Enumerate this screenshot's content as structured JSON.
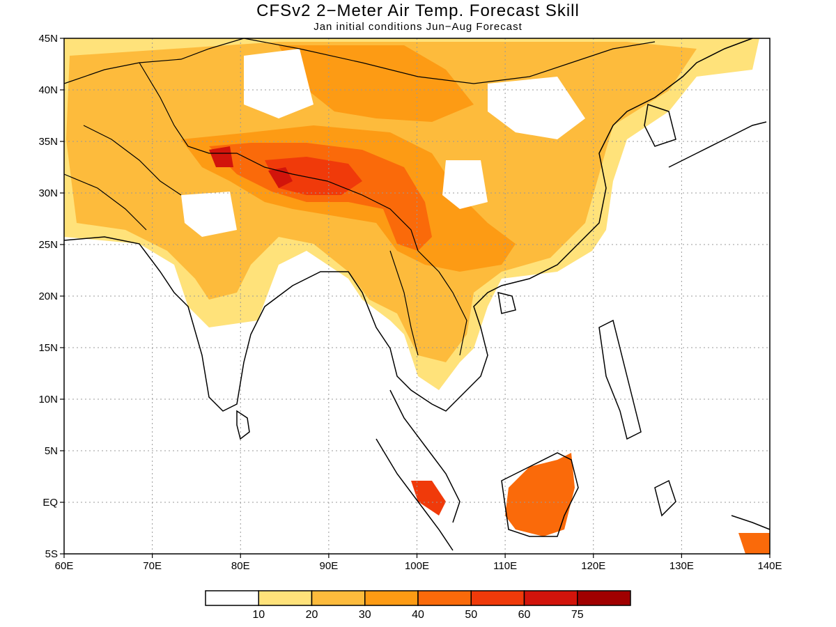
{
  "title": "CFSv2 2−Meter Air Temp. Forecast Skill",
  "subtitle": "Jan initial conditions   Jun−Aug Forecast",
  "map": {
    "lon_range": [
      60,
      140
    ],
    "lat_range": [
      -5,
      45
    ],
    "grid": "dotted",
    "lon_labels": [
      "60E",
      "70E",
      "80E",
      "90E",
      "100E",
      "110E",
      "120E",
      "130E",
      "140E"
    ],
    "lat_labels": [
      "45N",
      "40N",
      "35N",
      "30N",
      "25N",
      "20N",
      "15N",
      "10N",
      "5N",
      "EQ",
      "5S"
    ]
  },
  "colorbar": {
    "labels": [
      "10",
      "20",
      "30",
      "40",
      "50",
      "60",
      "75"
    ],
    "colors": [
      "#ffffff",
      "#ffe27a",
      "#fdbb3c",
      "#fd9b14",
      "#fa6a0a",
      "#f03a0a",
      "#d2140b",
      "#a00000"
    ]
  },
  "colors": {
    "land_outline": "#000000",
    "grid": "#999999",
    "background": "#ffffff"
  }
}
